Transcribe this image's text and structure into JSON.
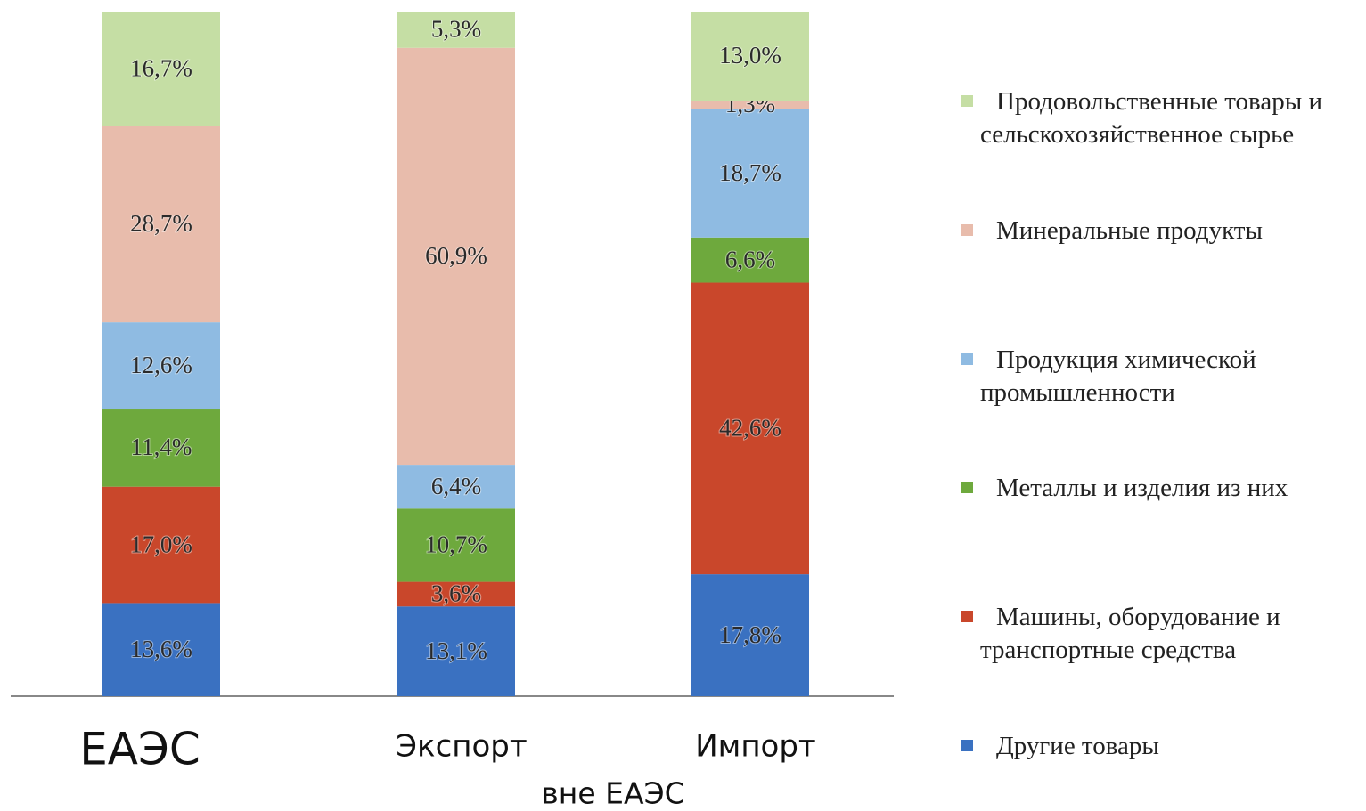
{
  "chart_data": {
    "type": "stacked_bar",
    "categories": [
      "ЕАЭС",
      "Экспорт",
      "Импорт"
    ],
    "annotation": "вне ЕАЭС",
    "ylim": [
      0,
      100
    ],
    "series": [
      {
        "name": "Другие товары",
        "color": "#3a71c1",
        "values": [
          13.6,
          13.1,
          17.8
        ],
        "value_labels": [
          "13,6%",
          "13,1%",
          "17,8%"
        ]
      },
      {
        "name": "Машины, оборудование и транспортные средства",
        "color": "#c9472b",
        "values": [
          17.0,
          3.6,
          42.6
        ],
        "value_labels": [
          "17,0%",
          "3,6%",
          "42,6%"
        ]
      },
      {
        "name": "Металлы и изделия из них",
        "color": "#6ea93d",
        "values": [
          11.4,
          10.7,
          6.6
        ],
        "value_labels": [
          "11,4%",
          "10,7%",
          "6,6%"
        ]
      },
      {
        "name": "Продукция химической промышленности",
        "color": "#8fbbe2",
        "values": [
          12.6,
          6.4,
          18.7
        ],
        "value_labels": [
          "12,6%",
          "6,4%",
          "18,7%"
        ]
      },
      {
        "name": "Минеральные продукты",
        "color": "#e8bcac",
        "values": [
          28.7,
          60.9,
          1.3
        ],
        "value_labels": [
          "28,7%",
          "60,9%",
          "1,3%"
        ]
      },
      {
        "name": "Продовольственные товары и сельскохозяйственное сырье",
        "color": "#c5dea4",
        "values": [
          16.7,
          5.3,
          13.0
        ],
        "value_labels": [
          "16,7%",
          "5,3%",
          "13,0%"
        ]
      }
    ]
  }
}
